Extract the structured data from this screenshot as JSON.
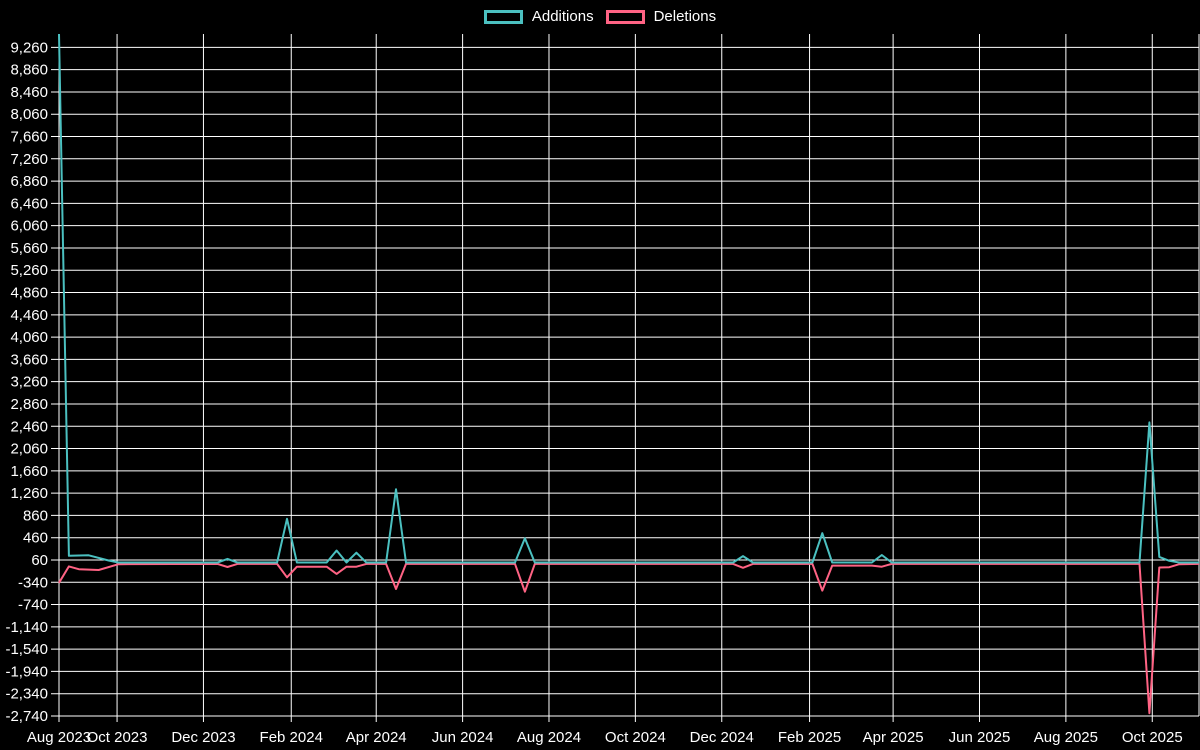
{
  "chart_data": {
    "type": "line",
    "title": "",
    "legend": {
      "position": "top",
      "entries": [
        {
          "label": "Additions",
          "color": "#4bc0c0"
        },
        {
          "label": "Deletions",
          "color": "#ff6384"
        }
      ]
    },
    "colors": {
      "background": "#000000",
      "grid": "#ffffff",
      "tick_text": "#ffffff"
    },
    "x_axis": {
      "type": "time",
      "min": "2023-08-21",
      "max": "2025-11-03",
      "ticks": [
        {
          "label": "Aug 2023",
          "date": "2023-08-21"
        },
        {
          "label": "Oct 2023",
          "date": "2023-10-01"
        },
        {
          "label": "Dec 2023",
          "date": "2023-12-01"
        },
        {
          "label": "Feb 2024",
          "date": "2024-02-01"
        },
        {
          "label": "Apr 2024",
          "date": "2024-04-01"
        },
        {
          "label": "Jun 2024",
          "date": "2024-06-01"
        },
        {
          "label": "Aug 2024",
          "date": "2024-08-01"
        },
        {
          "label": "Oct 2024",
          "date": "2024-10-01"
        },
        {
          "label": "Dec 2024",
          "date": "2024-12-01"
        },
        {
          "label": "Feb 2025",
          "date": "2025-02-01"
        },
        {
          "label": "Apr 2025",
          "date": "2025-04-01"
        },
        {
          "label": "Jun 2025",
          "date": "2025-06-01"
        },
        {
          "label": "Aug 2025",
          "date": "2025-08-01"
        },
        {
          "label": "Oct 2025",
          "date": "2025-10-01"
        }
      ]
    },
    "y_axis": {
      "min": -2740,
      "max": 9500,
      "tick_start": -2740,
      "tick_step": 400,
      "tick_max": 9260,
      "grid": true
    },
    "series": [
      {
        "name": "Additions",
        "color": "#4bc0c0",
        "points": [
          [
            "2023-08-21",
            9500
          ],
          [
            "2023-08-28",
            135
          ],
          [
            "2023-09-11",
            145
          ],
          [
            "2023-09-25",
            50
          ],
          [
            "2023-10-02",
            15
          ],
          [
            "2023-12-11",
            15
          ],
          [
            "2023-12-18",
            80
          ],
          [
            "2023-12-25",
            15
          ],
          [
            "2024-01-22",
            15
          ],
          [
            "2024-01-29",
            800
          ],
          [
            "2024-02-05",
            15
          ],
          [
            "2024-02-26",
            15
          ],
          [
            "2024-03-04",
            230
          ],
          [
            "2024-03-11",
            15
          ],
          [
            "2024-03-18",
            190
          ],
          [
            "2024-03-25",
            15
          ],
          [
            "2024-04-08",
            15
          ],
          [
            "2024-04-15",
            1330
          ],
          [
            "2024-04-22",
            15
          ],
          [
            "2024-07-08",
            15
          ],
          [
            "2024-07-15",
            450
          ],
          [
            "2024-07-22",
            15
          ],
          [
            "2024-12-09",
            15
          ],
          [
            "2024-12-16",
            130
          ],
          [
            "2024-12-23",
            15
          ],
          [
            "2025-02-03",
            15
          ],
          [
            "2025-02-10",
            540
          ],
          [
            "2025-02-17",
            15
          ],
          [
            "2025-03-17",
            15
          ],
          [
            "2025-03-24",
            150
          ],
          [
            "2025-03-31",
            15
          ],
          [
            "2025-09-22",
            15
          ],
          [
            "2025-09-29",
            2530
          ],
          [
            "2025-10-06",
            115
          ],
          [
            "2025-10-13",
            45
          ],
          [
            "2025-10-20",
            15
          ],
          [
            "2025-11-03",
            15
          ]
        ]
      },
      {
        "name": "Deletions",
        "color": "#ff6384",
        "points": [
          [
            "2023-08-21",
            -350
          ],
          [
            "2023-08-28",
            -55
          ],
          [
            "2023-09-04",
            -105
          ],
          [
            "2023-09-18",
            -120
          ],
          [
            "2023-10-02",
            -15
          ],
          [
            "2023-12-11",
            -10
          ],
          [
            "2023-12-18",
            -65
          ],
          [
            "2023-12-25",
            -10
          ],
          [
            "2024-01-22",
            -10
          ],
          [
            "2024-01-29",
            -250
          ],
          [
            "2024-02-05",
            -60
          ],
          [
            "2024-02-26",
            -60
          ],
          [
            "2024-03-04",
            -190
          ],
          [
            "2024-03-11",
            -60
          ],
          [
            "2024-03-18",
            -60
          ],
          [
            "2024-03-25",
            -10
          ],
          [
            "2024-04-08",
            -10
          ],
          [
            "2024-04-15",
            -460
          ],
          [
            "2024-04-22",
            -10
          ],
          [
            "2024-07-08",
            -10
          ],
          [
            "2024-07-15",
            -510
          ],
          [
            "2024-07-22",
            -10
          ],
          [
            "2024-12-09",
            -10
          ],
          [
            "2024-12-16",
            -80
          ],
          [
            "2024-12-23",
            -10
          ],
          [
            "2025-02-03",
            -10
          ],
          [
            "2025-02-10",
            -490
          ],
          [
            "2025-02-17",
            -40
          ],
          [
            "2025-03-17",
            -40
          ],
          [
            "2025-03-24",
            -60
          ],
          [
            "2025-03-31",
            -10
          ],
          [
            "2025-09-22",
            -10
          ],
          [
            "2025-09-29",
            -2690
          ],
          [
            "2025-10-06",
            -75
          ],
          [
            "2025-10-13",
            -70
          ],
          [
            "2025-10-20",
            -15
          ],
          [
            "2025-11-03",
            -10
          ]
        ]
      }
    ]
  }
}
